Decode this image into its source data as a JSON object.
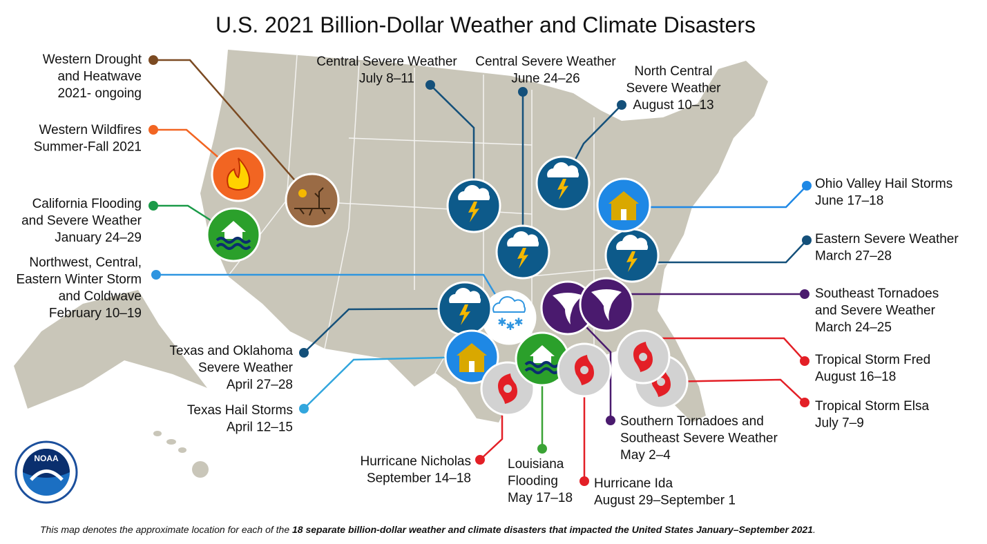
{
  "title": "U.S. 2021 Billion-Dollar Weather and Climate Disasters",
  "events": [
    {
      "lines": [
        "Western Drought",
        "and Heatwave",
        "2021- ongoing"
      ]
    },
    {
      "lines": [
        "Western Wildfires",
        "Summer-Fall 2021"
      ]
    },
    {
      "lines": [
        "California Flooding",
        "and Severe Weather",
        "January 24–29"
      ]
    },
    {
      "lines": [
        "Northwest, Central,",
        "Eastern Winter Storm",
        "and Coldwave",
        "February 10–19"
      ]
    },
    {
      "lines": [
        "Texas and Oklahoma",
        "Severe Weather",
        "April 27–28"
      ]
    },
    {
      "lines": [
        "Texas Hail Storms",
        "April 12–15"
      ]
    },
    {
      "lines": [
        "Hurricane Nicholas",
        "September 14–18"
      ]
    },
    {
      "lines": [
        "Louisiana",
        "Flooding",
        "May 17–18"
      ]
    },
    {
      "lines": [
        "Hurricane Ida",
        "August 29–September 1"
      ]
    },
    {
      "lines": [
        "Southern Tornadoes and",
        "Southeast Severe Weather",
        "May 2–4"
      ]
    },
    {
      "lines": [
        "Tropical Storm Elsa",
        "July 7–9"
      ]
    },
    {
      "lines": [
        "Tropical Storm Fred",
        "August 16–18"
      ]
    },
    {
      "lines": [
        "Southeast Tornadoes",
        "and Severe Weather",
        "March 24–25"
      ]
    },
    {
      "lines": [
        "Eastern Severe Weather",
        "March 27–28"
      ]
    },
    {
      "lines": [
        "Ohio Valley Hail Storms",
        "June 17–18"
      ]
    },
    {
      "lines": [
        "North Central",
        "Severe Weather",
        "August 10–13"
      ]
    },
    {
      "lines": [
        "Central Severe Weather",
        "June 24–26"
      ]
    },
    {
      "lines": [
        "Central Severe Weather",
        "July 8–11"
      ]
    }
  ],
  "footnote": {
    "text_before": "This map denotes the approximate location for each of the ",
    "bold": "18 separate billion-dollar weather and climate disasters that impacted the United States January–September 2021",
    "text_after": "."
  },
  "logo": {
    "text": "NOAA"
  }
}
